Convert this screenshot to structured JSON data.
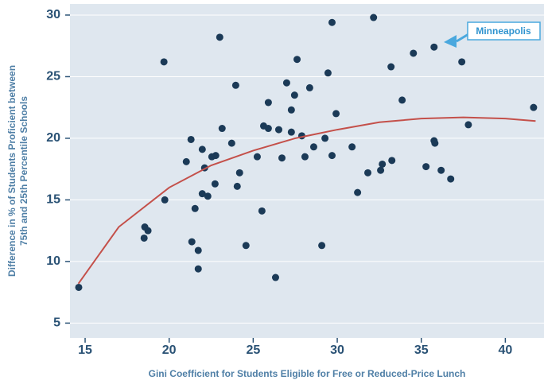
{
  "chart_data": {
    "type": "scatter",
    "xlabel": "Gini Coefficient for Students Eligible for Free or Reduced-Price Lunch",
    "ylabel": [
      "Difference in % of Students Proficient between",
      "75th and 25th Percentile Schools"
    ],
    "xlim": [
      14.1,
      42.3
    ],
    "ylim": [
      3.8,
      30.9
    ],
    "xticks": [
      15,
      20,
      25,
      30,
      35,
      40
    ],
    "yticks": [
      5,
      10,
      15,
      20,
      25,
      30
    ],
    "grid": true,
    "color": "#1b3a57",
    "x": [
      14.62,
      18.55,
      18.74,
      18.51,
      19.74,
      19.69,
      21.02,
      21.3,
      21.35,
      21.54,
      21.73,
      21.73,
      21.97,
      21.97,
      22.11,
      22.3,
      22.54,
      22.77,
      22.73,
      23.15,
      23.01,
      23.72,
      23.96,
      24.05,
      24.19,
      24.57,
      25.24,
      25.52,
      25.62,
      25.9,
      25.9,
      26.33,
      26.52,
      26.71,
      26.99,
      27.27,
      27.27,
      27.46,
      27.61,
      27.89,
      28.08,
      28.36,
      28.6,
      29.08,
      29.27,
      29.45,
      29.69,
      29.69,
      29.93,
      30.88,
      31.21,
      31.82,
      32.16,
      32.58,
      32.68,
      33.2,
      33.25,
      33.86,
      34.53,
      35.28,
      35.76,
      35.76,
      35.81,
      36.18,
      36.75,
      37.41,
      37.8,
      41.68
    ],
    "values": [
      7.9,
      12.8,
      12.5,
      11.9,
      15.0,
      26.2,
      18.1,
      19.9,
      11.6,
      14.3,
      10.9,
      9.4,
      19.1,
      15.5,
      17.6,
      15.3,
      18.5,
      18.6,
      16.3,
      20.8,
      28.2,
      19.6,
      24.3,
      16.1,
      17.2,
      11.3,
      18.5,
      14.1,
      21.0,
      22.9,
      20.8,
      8.7,
      20.7,
      18.4,
      24.5,
      20.5,
      22.3,
      23.5,
      26.4,
      20.2,
      18.5,
      24.1,
      19.3,
      11.3,
      20.0,
      25.3,
      18.6,
      29.4,
      22.0,
      19.3,
      15.6,
      17.2,
      29.8,
      17.4,
      17.9,
      25.8,
      18.2,
      23.1,
      26.9,
      17.7,
      27.4,
      19.8,
      19.6,
      17.4,
      16.7,
      26.2,
      21.1,
      22.5
    ],
    "fit": {
      "color": "#c4504a",
      "x": [
        14.6,
        17,
        20,
        22.5,
        25,
        27.5,
        30,
        32.5,
        35,
        37.5,
        40,
        41.8
      ],
      "values": [
        8.2,
        12.8,
        16.0,
        17.8,
        19.0,
        20.0,
        20.7,
        21.3,
        21.6,
        21.7,
        21.6,
        21.4
      ]
    },
    "annotation": "Minneapolis"
  }
}
